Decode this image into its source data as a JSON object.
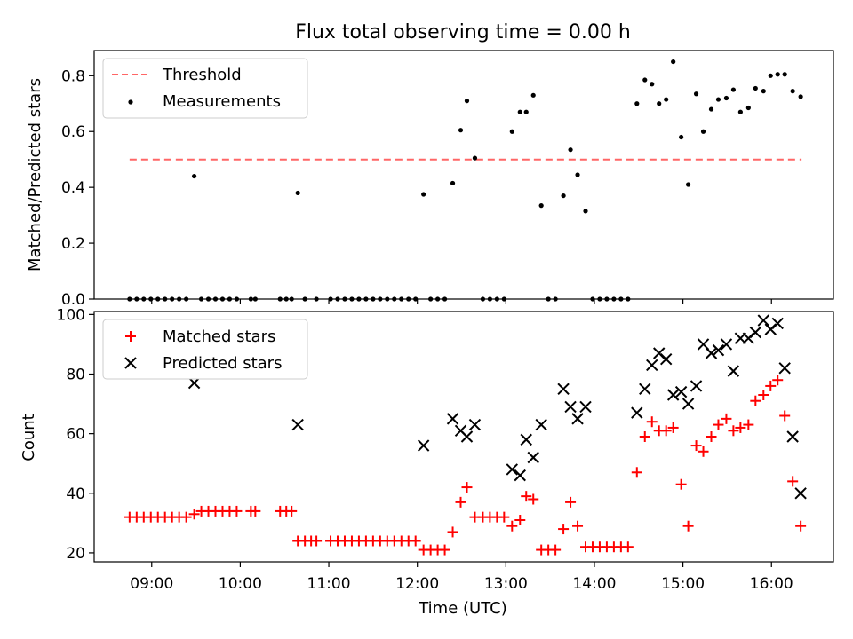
{
  "figure": {
    "title": "Flux total observing time = 0.00 h",
    "xlabel": "Time (UTC)",
    "xticks": [
      {
        "h": 9,
        "label": "09:00"
      },
      {
        "h": 10,
        "label": "10:00"
      },
      {
        "h": 11,
        "label": "11:00"
      },
      {
        "h": 12,
        "label": "12:00"
      },
      {
        "h": 13,
        "label": "13:00"
      },
      {
        "h": 14,
        "label": "14:00"
      },
      {
        "h": 15,
        "label": "15:00"
      },
      {
        "h": 16,
        "label": "16:00"
      }
    ],
    "xlim": [
      8.35,
      16.7
    ]
  },
  "chart_data": [
    {
      "type": "scatter",
      "title": "Flux total observing time = 0.00 h",
      "xlabel": "",
      "ylabel": "Matched/Predicted stars",
      "ylim": [
        0,
        0.89
      ],
      "yticks": [
        0.0,
        0.2,
        0.4,
        0.6,
        0.8
      ],
      "legend_position": "top-left",
      "threshold": {
        "name": "Threshold",
        "value": 0.5,
        "x_range": [
          8.75,
          16.34
        ],
        "color": "#ff6666"
      },
      "series": [
        {
          "name": "Measurements",
          "color": "#000000",
          "points": [
            [
              8.75,
              0
            ],
            [
              8.83,
              0
            ],
            [
              8.91,
              0
            ],
            [
              8.99,
              0
            ],
            [
              9.07,
              0
            ],
            [
              9.15,
              0
            ],
            [
              9.23,
              0
            ],
            [
              9.31,
              0
            ],
            [
              9.39,
              0
            ],
            [
              9.48,
              0.44
            ],
            [
              9.56,
              0
            ],
            [
              9.64,
              0
            ],
            [
              9.72,
              0
            ],
            [
              9.8,
              0
            ],
            [
              9.88,
              0
            ],
            [
              9.96,
              0
            ],
            [
              10.12,
              0
            ],
            [
              10.17,
              0
            ],
            [
              10.45,
              0
            ],
            [
              10.52,
              0
            ],
            [
              10.58,
              0
            ],
            [
              10.65,
              0.38
            ],
            [
              10.73,
              0
            ],
            [
              10.86,
              0
            ],
            [
              11.02,
              0
            ],
            [
              11.1,
              0
            ],
            [
              11.18,
              0
            ],
            [
              11.26,
              0
            ],
            [
              11.34,
              0
            ],
            [
              11.42,
              0
            ],
            [
              11.5,
              0
            ],
            [
              11.58,
              0
            ],
            [
              11.66,
              0
            ],
            [
              11.74,
              0
            ],
            [
              11.82,
              0
            ],
            [
              11.9,
              0
            ],
            [
              11.98,
              0
            ],
            [
              12.07,
              0.375
            ],
            [
              12.15,
              0
            ],
            [
              12.23,
              0
            ],
            [
              12.31,
              0
            ],
            [
              12.4,
              0.415
            ],
            [
              12.49,
              0.605
            ],
            [
              12.56,
              0.71
            ],
            [
              12.65,
              0.505
            ],
            [
              12.74,
              0
            ],
            [
              12.82,
              0
            ],
            [
              12.9,
              0
            ],
            [
              12.98,
              0
            ],
            [
              13.07,
              0.6
            ],
            [
              13.16,
              0.67
            ],
            [
              13.23,
              0.67
            ],
            [
              13.31,
              0.73
            ],
            [
              13.4,
              0.335
            ],
            [
              13.48,
              0
            ],
            [
              13.56,
              0
            ],
            [
              13.65,
              0.37
            ],
            [
              13.73,
              0.535
            ],
            [
              13.81,
              0.445
            ],
            [
              13.9,
              0.315
            ],
            [
              13.98,
              0
            ],
            [
              14.06,
              0
            ],
            [
              14.14,
              0
            ],
            [
              14.22,
              0
            ],
            [
              14.3,
              0
            ],
            [
              14.38,
              0
            ],
            [
              14.48,
              0.7
            ],
            [
              14.57,
              0.785
            ],
            [
              14.65,
              0.77
            ],
            [
              14.73,
              0.7
            ],
            [
              14.81,
              0.715
            ],
            [
              14.89,
              0.85
            ],
            [
              14.98,
              0.58
            ],
            [
              15.06,
              0.41
            ],
            [
              15.15,
              0.735
            ],
            [
              15.23,
              0.6
            ],
            [
              15.32,
              0.68
            ],
            [
              15.4,
              0.715
            ],
            [
              15.49,
              0.72
            ],
            [
              15.57,
              0.75
            ],
            [
              15.65,
              0.67
            ],
            [
              15.74,
              0.685
            ],
            [
              15.82,
              0.755
            ],
            [
              15.91,
              0.745
            ],
            [
              15.99,
              0.8
            ],
            [
              16.07,
              0.805
            ],
            [
              16.15,
              0.805
            ],
            [
              16.24,
              0.745
            ],
            [
              16.33,
              0.725
            ]
          ]
        }
      ]
    },
    {
      "type": "scatter",
      "title": "",
      "xlabel": "Time (UTC)",
      "ylabel": "Count",
      "ylim": [
        17,
        101
      ],
      "yticks": [
        20,
        40,
        60,
        80,
        100
      ],
      "legend_position": "top-left",
      "series": [
        {
          "name": "Matched stars",
          "color": "#ff0000",
          "marker": "plus",
          "points": [
            [
              8.75,
              32
            ],
            [
              8.83,
              32
            ],
            [
              8.91,
              32
            ],
            [
              8.99,
              32
            ],
            [
              9.07,
              32
            ],
            [
              9.15,
              32
            ],
            [
              9.23,
              32
            ],
            [
              9.31,
              32
            ],
            [
              9.39,
              32
            ],
            [
              9.48,
              33
            ],
            [
              9.56,
              34
            ],
            [
              9.64,
              34
            ],
            [
              9.72,
              34
            ],
            [
              9.8,
              34
            ],
            [
              9.88,
              34
            ],
            [
              9.96,
              34
            ],
            [
              10.12,
              34
            ],
            [
              10.17,
              34
            ],
            [
              10.45,
              34
            ],
            [
              10.52,
              34
            ],
            [
              10.58,
              34
            ],
            [
              10.65,
              24
            ],
            [
              10.73,
              24
            ],
            [
              10.8,
              24
            ],
            [
              10.86,
              24
            ],
            [
              11.02,
              24
            ],
            [
              11.1,
              24
            ],
            [
              11.18,
              24
            ],
            [
              11.26,
              24
            ],
            [
              11.34,
              24
            ],
            [
              11.42,
              24
            ],
            [
              11.5,
              24
            ],
            [
              11.58,
              24
            ],
            [
              11.66,
              24
            ],
            [
              11.74,
              24
            ],
            [
              11.82,
              24
            ],
            [
              11.9,
              24
            ],
            [
              11.98,
              24
            ],
            [
              12.07,
              21
            ],
            [
              12.15,
              21
            ],
            [
              12.23,
              21
            ],
            [
              12.31,
              21
            ],
            [
              12.4,
              27
            ],
            [
              12.49,
              37
            ],
            [
              12.56,
              42
            ],
            [
              12.65,
              32
            ],
            [
              12.74,
              32
            ],
            [
              12.82,
              32
            ],
            [
              12.9,
              32
            ],
            [
              12.98,
              32
            ],
            [
              13.07,
              29
            ],
            [
              13.16,
              31
            ],
            [
              13.23,
              39
            ],
            [
              13.31,
              38
            ],
            [
              13.4,
              21
            ],
            [
              13.48,
              21
            ],
            [
              13.56,
              21
            ],
            [
              13.65,
              28
            ],
            [
              13.73,
              37
            ],
            [
              13.81,
              29
            ],
            [
              13.9,
              22
            ],
            [
              13.98,
              22
            ],
            [
              14.06,
              22
            ],
            [
              14.14,
              22
            ],
            [
              14.22,
              22
            ],
            [
              14.3,
              22
            ],
            [
              14.38,
              22
            ],
            [
              14.48,
              47
            ],
            [
              14.57,
              59
            ],
            [
              14.65,
              64
            ],
            [
              14.73,
              61
            ],
            [
              14.81,
              61
            ],
            [
              14.89,
              62
            ],
            [
              14.98,
              43
            ],
            [
              15.06,
              29
            ],
            [
              15.15,
              56
            ],
            [
              15.23,
              54
            ],
            [
              15.32,
              59
            ],
            [
              15.4,
              63
            ],
            [
              15.49,
              65
            ],
            [
              15.57,
              61
            ],
            [
              15.65,
              62
            ],
            [
              15.74,
              63
            ],
            [
              15.82,
              71
            ],
            [
              15.91,
              73
            ],
            [
              15.99,
              76
            ],
            [
              16.07,
              78
            ],
            [
              16.15,
              66
            ],
            [
              16.24,
              44
            ],
            [
              16.33,
              29
            ]
          ]
        },
        {
          "name": "Predicted stars",
          "color": "#000000",
          "marker": "x",
          "points": [
            [
              9.48,
              77
            ],
            [
              10.65,
              63
            ],
            [
              12.07,
              56
            ],
            [
              12.4,
              65
            ],
            [
              12.49,
              61
            ],
            [
              12.56,
              59
            ],
            [
              12.65,
              63
            ],
            [
              13.07,
              48
            ],
            [
              13.16,
              46
            ],
            [
              13.23,
              58
            ],
            [
              13.31,
              52
            ],
            [
              13.4,
              63
            ],
            [
              13.65,
              75
            ],
            [
              13.73,
              69
            ],
            [
              13.81,
              65
            ],
            [
              13.9,
              69
            ],
            [
              14.48,
              67
            ],
            [
              14.57,
              75
            ],
            [
              14.65,
              83
            ],
            [
              14.73,
              87
            ],
            [
              14.81,
              85
            ],
            [
              14.89,
              73
            ],
            [
              14.98,
              74
            ],
            [
              15.06,
              70
            ],
            [
              15.15,
              76
            ],
            [
              15.23,
              90
            ],
            [
              15.32,
              87
            ],
            [
              15.4,
              88
            ],
            [
              15.49,
              90
            ],
            [
              15.57,
              81
            ],
            [
              15.65,
              92
            ],
            [
              15.74,
              92
            ],
            [
              15.82,
              94
            ],
            [
              15.91,
              98
            ],
            [
              15.99,
              95
            ],
            [
              16.07,
              97
            ],
            [
              16.15,
              82
            ],
            [
              16.24,
              59
            ],
            [
              16.33,
              40
            ]
          ]
        }
      ]
    }
  ]
}
